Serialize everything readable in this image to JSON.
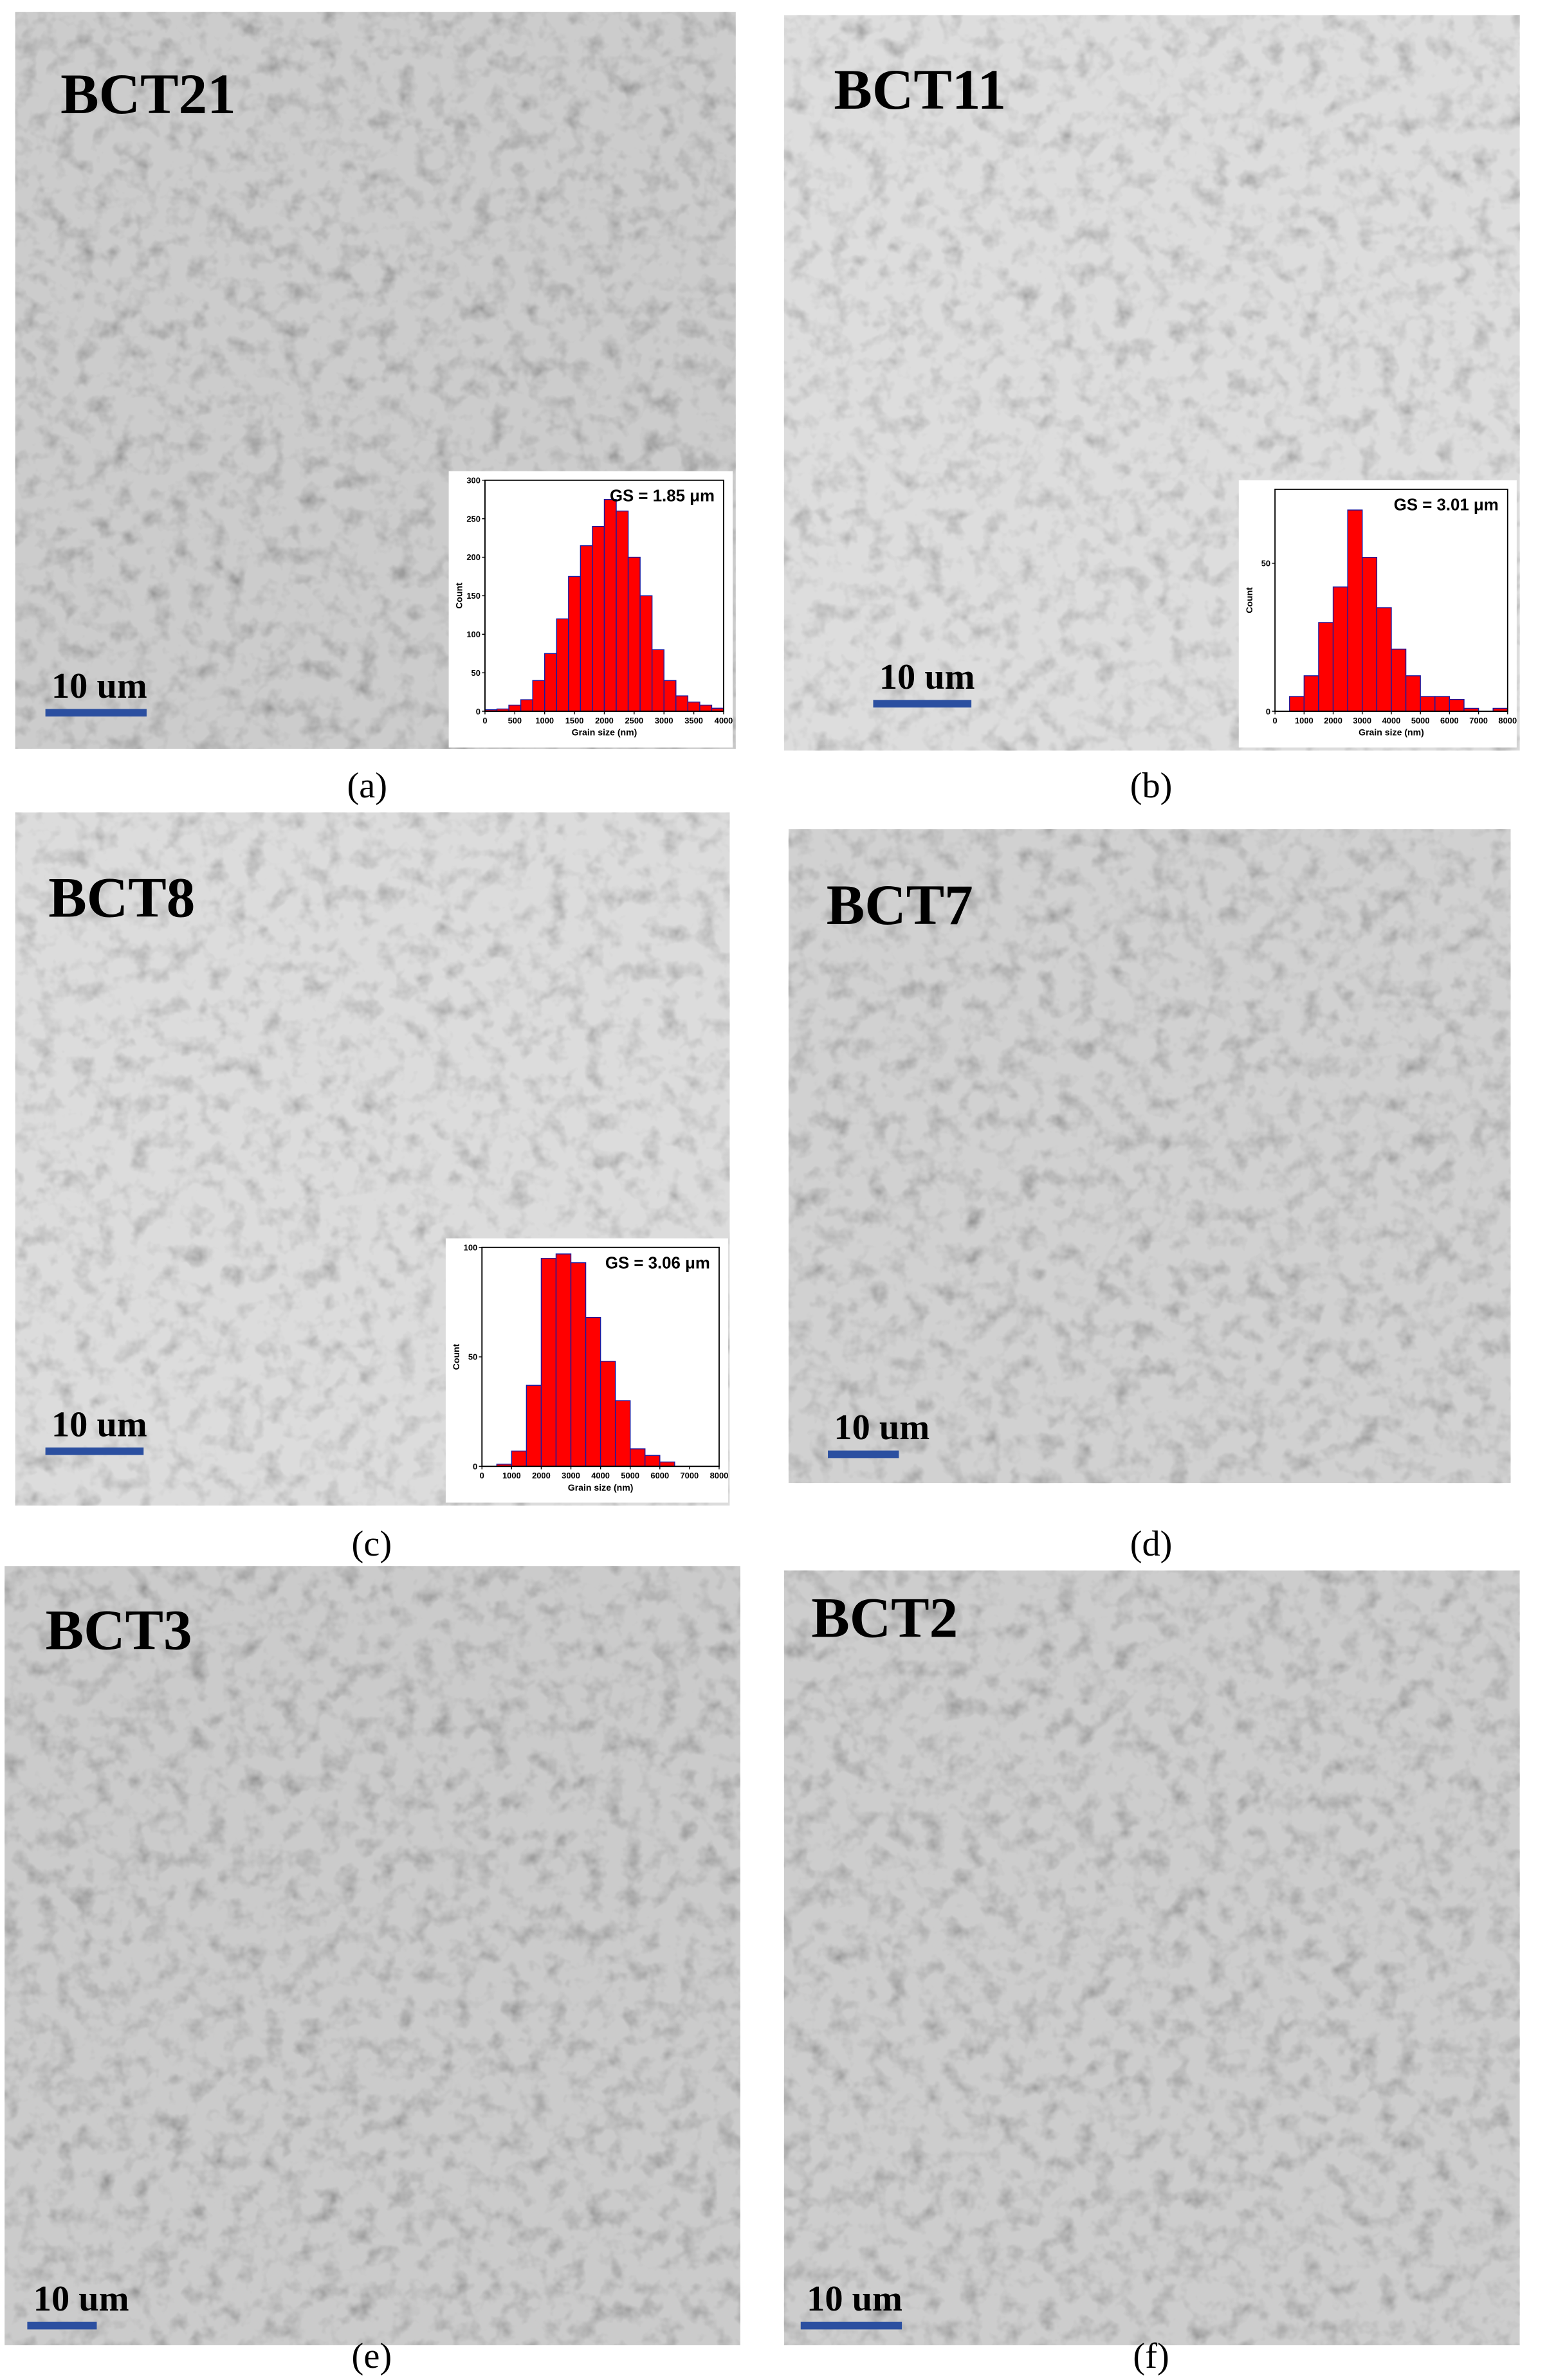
{
  "panels": [
    {
      "sample": "BCT21",
      "scale_bar": "10 um",
      "caption": "(a)",
      "inset": {
        "type": "histogram",
        "title": "GS = 1.85 μm",
        "x_label": "Grain size (nm)",
        "y_label": "Count",
        "color": "#ff0000",
        "bins": [
          0,
          200,
          400,
          600,
          800,
          1000,
          1200,
          1400,
          1600,
          1800,
          2000,
          2200,
          2400,
          2600,
          2800,
          3000,
          3200,
          3400,
          3600,
          3800,
          4000
        ],
        "values": [
          2,
          3,
          8,
          15,
          40,
          75,
          120,
          175,
          215,
          240,
          275,
          260,
          200,
          150,
          80,
          40,
          20,
          12,
          8,
          4
        ],
        "xlim": [
          0,
          4000
        ],
        "xticks": [
          0,
          500,
          1000,
          1500,
          2000,
          2500,
          3000,
          3500,
          4000
        ],
        "ylim": [
          0,
          300
        ],
        "yticks": [
          0,
          50,
          100,
          150,
          200,
          250,
          300
        ]
      }
    },
    {
      "sample": "BCT11",
      "scale_bar": "10 um",
      "caption": "(b)",
      "inset": {
        "type": "histogram",
        "title": "GS = 3.01 μm",
        "x_label": "Grain size (nm)",
        "y_label": "Count",
        "color": "#ff0000",
        "bins": [
          500,
          1000,
          1500,
          2000,
          2500,
          3000,
          3500,
          4000,
          4500,
          5000,
          5500,
          6000,
          6500,
          7000,
          7500,
          8000
        ],
        "values": [
          5,
          12,
          30,
          42,
          68,
          52,
          35,
          21,
          12,
          5,
          5,
          4,
          1,
          0,
          1
        ],
        "xlim": [
          0,
          8000
        ],
        "xticks": [
          0,
          1000,
          2000,
          3000,
          4000,
          5000,
          6000,
          7000,
          8000
        ],
        "ylim": [
          0,
          75
        ],
        "yticks": [
          0,
          50
        ]
      }
    },
    {
      "sample": "BCT8",
      "scale_bar": "10 um",
      "caption": "(c)",
      "inset": {
        "type": "histogram",
        "title": "GS = 3.06 μm",
        "x_label": "Grain size (nm)",
        "y_label": "Count",
        "color": "#ff0000",
        "bins": [
          500,
          1000,
          1500,
          2000,
          2500,
          3000,
          3500,
          4000,
          4500,
          5000,
          5500,
          6000,
          6500
        ],
        "values": [
          1,
          7,
          37,
          95,
          97,
          93,
          68,
          48,
          30,
          8,
          5,
          2
        ],
        "xlim": [
          0,
          8000
        ],
        "xticks": [
          0,
          1000,
          2000,
          3000,
          4000,
          5000,
          6000,
          7000,
          8000
        ],
        "ylim": [
          0,
          100
        ],
        "yticks": [
          0,
          50,
          100
        ]
      }
    },
    {
      "sample": "BCT7",
      "scale_bar": "10 um",
      "caption": "(d)"
    },
    {
      "sample": "BCT3",
      "scale_bar": "10 um",
      "caption": "(e)"
    },
    {
      "sample": "BCT2",
      "scale_bar": "10 um",
      "caption": "(f)"
    }
  ]
}
